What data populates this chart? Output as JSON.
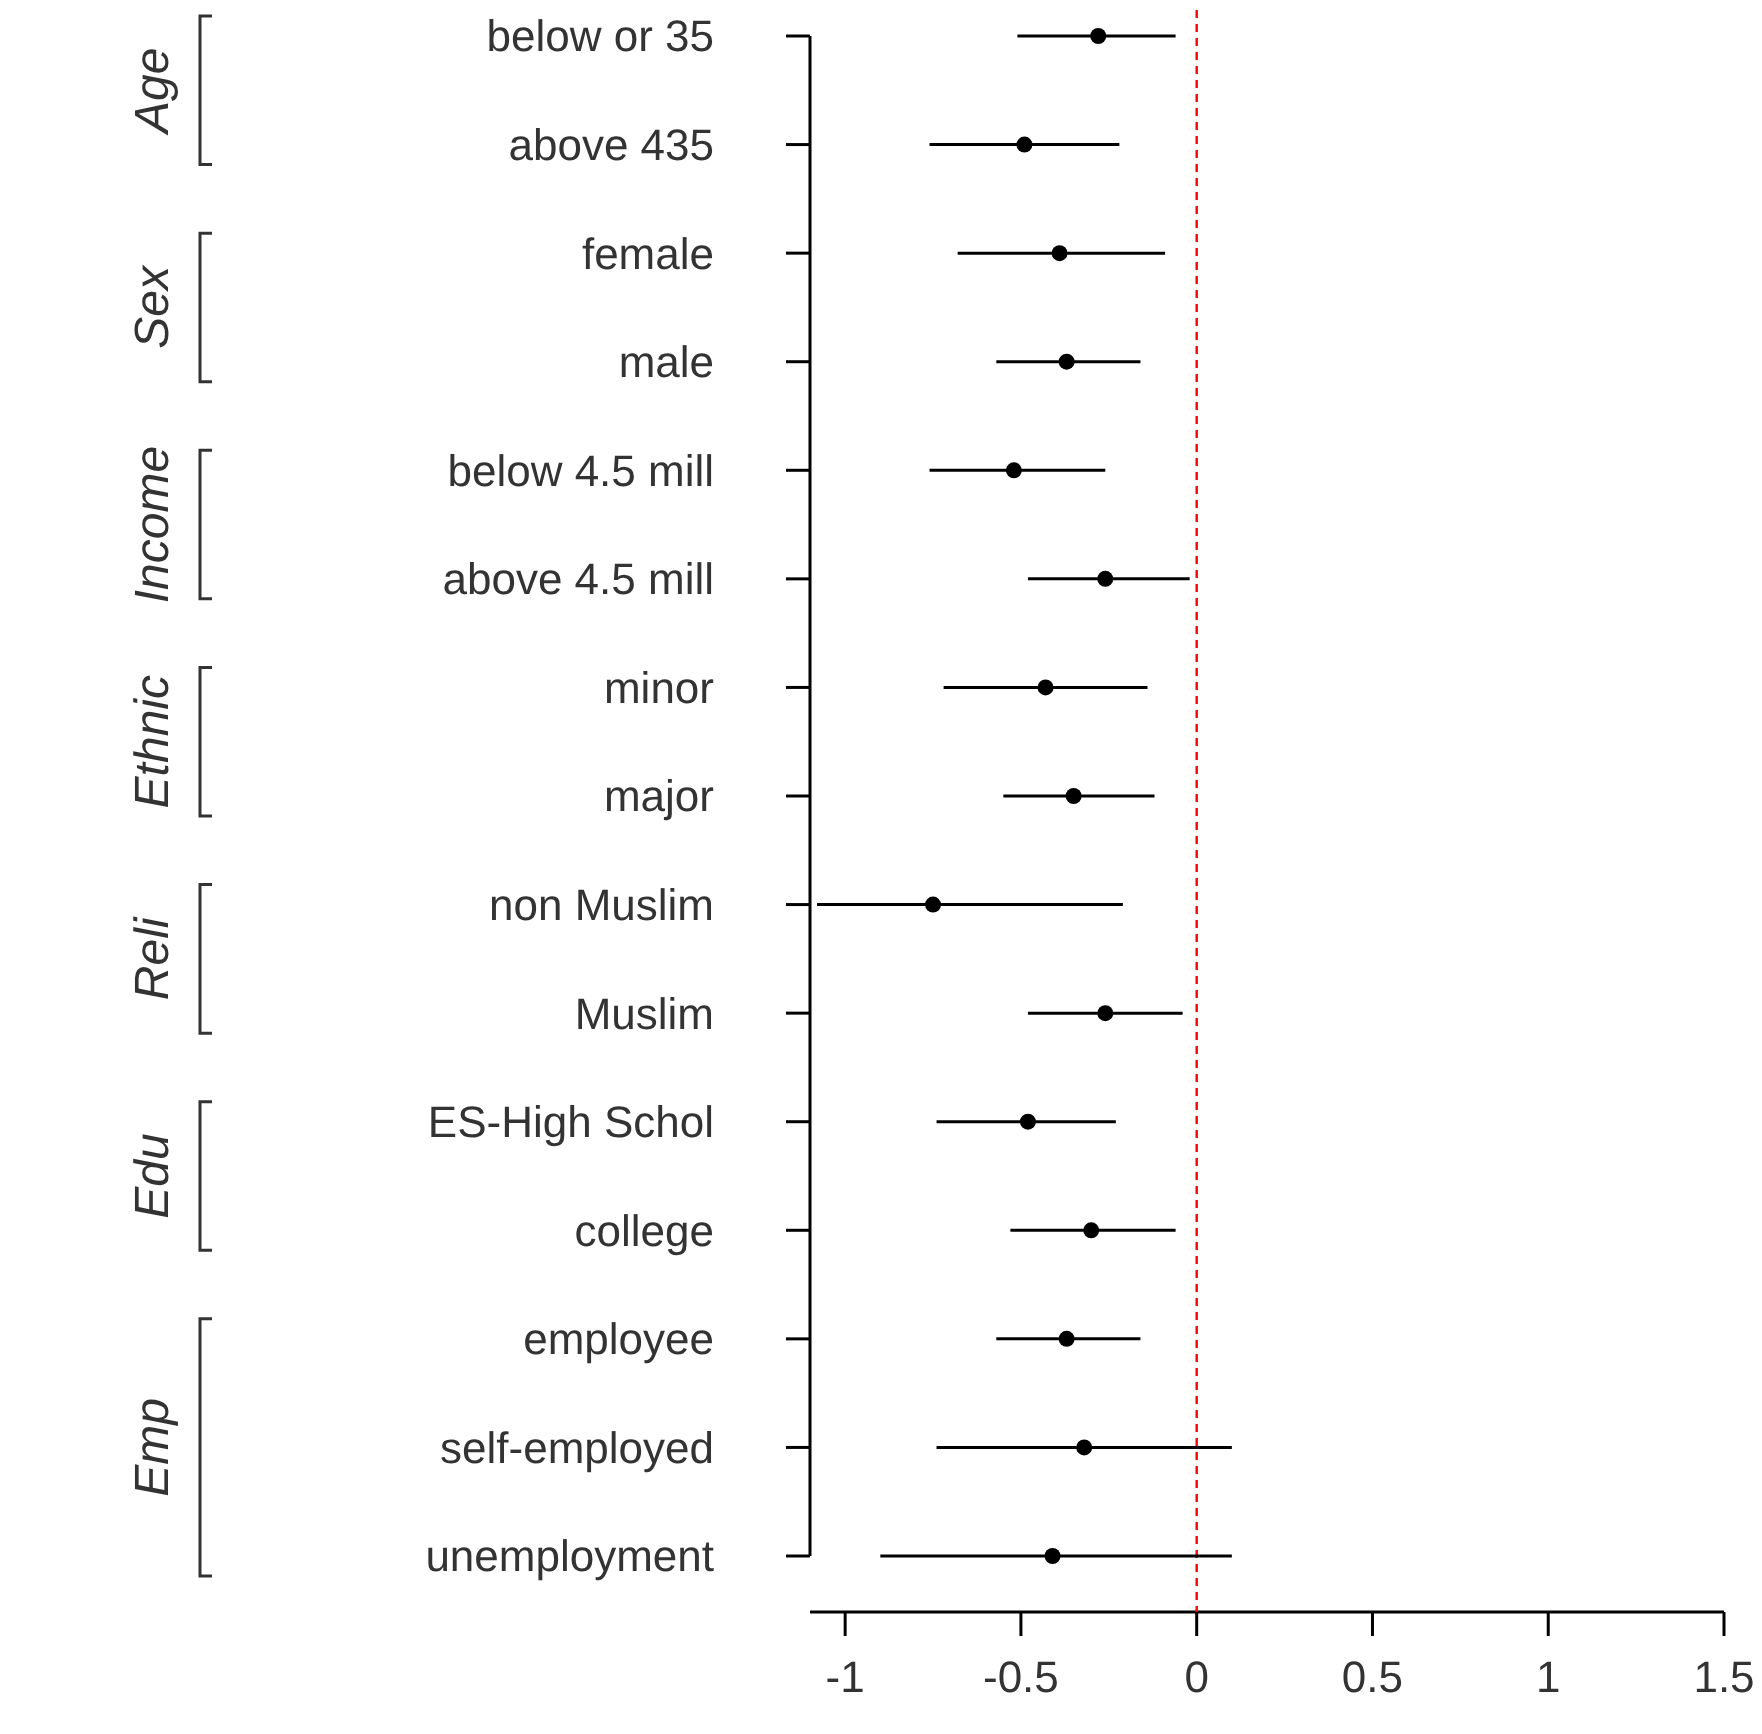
{
  "chart_data": {
    "type": "scatter",
    "orientation": "horizontal",
    "categories": [
      "below or 35",
      "above 435",
      "female",
      "male",
      "below 4.5 mill",
      "above 4.5 mill",
      "minor",
      "major",
      "non Muslim",
      "Muslim",
      "ES-High Schol",
      "college",
      "employee",
      "self-employed",
      "unemployment"
    ],
    "values": [
      -0.28,
      -0.49,
      -0.39,
      -0.37,
      -0.52,
      -0.26,
      -0.43,
      -0.35,
      -0.75,
      -0.26,
      -0.48,
      -0.3,
      -0.37,
      -0.32,
      -0.41
    ],
    "errors": [
      [
        -0.51,
        -0.06
      ],
      [
        -0.76,
        -0.22
      ],
      [
        -0.68,
        -0.09
      ],
      [
        -0.57,
        -0.16
      ],
      [
        -0.76,
        -0.26
      ],
      [
        -0.48,
        -0.02
      ],
      [
        -0.72,
        -0.14
      ],
      [
        -0.55,
        -0.12
      ],
      [
        -1.08,
        -0.21
      ],
      [
        -0.48,
        -0.04
      ],
      [
        -0.74,
        -0.23
      ],
      [
        -0.53,
        -0.06
      ],
      [
        -0.57,
        -0.16
      ],
      [
        -0.74,
        0.1
      ],
      [
        -0.9,
        0.1
      ]
    ],
    "color": "#000000",
    "marker": "circle",
    "xlim": [
      -1.1,
      1.5
    ],
    "xticks": [
      -1,
      -0.5,
      0,
      0.5,
      1,
      1.5
    ],
    "ref_lines": [
      {
        "axis": "x",
        "value": 0,
        "color": "#ff0000",
        "line_style": "dashed"
      }
    ],
    "annotations": [
      "Age",
      "Sex",
      "Income",
      "Ethnic",
      "Reli",
      "Edu",
      "Emp"
    ]
  }
}
